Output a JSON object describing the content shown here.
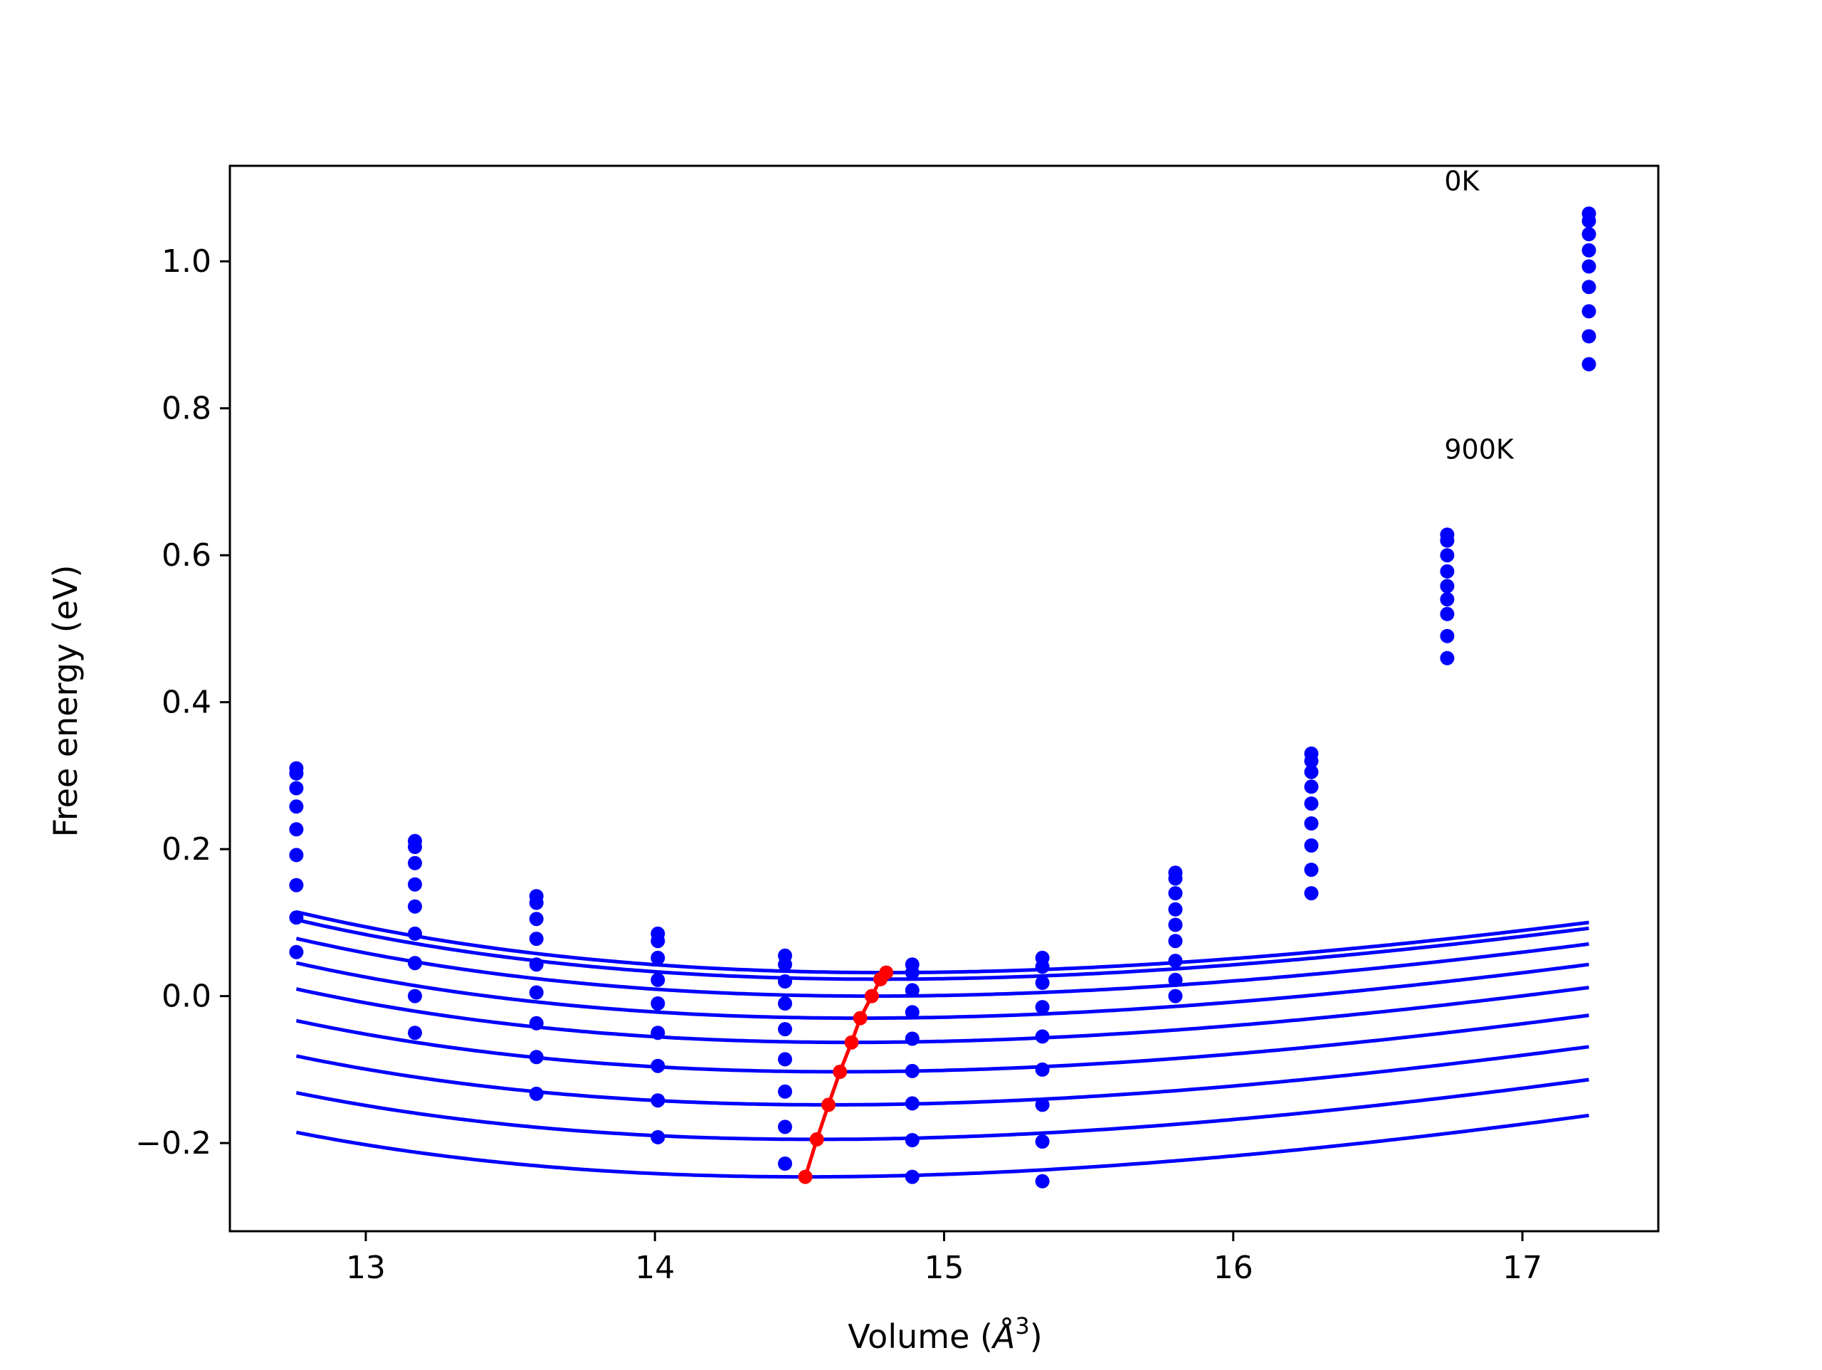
{
  "chart_data": {
    "type": "scatter",
    "title": "",
    "xlabel": "Volume ($\\AA^3$)",
    "xlabel_main": "Volume (",
    "xlabel_unit": "Å",
    "xlabel_exp": "3",
    "xlabel_close": ")",
    "ylabel": "Free energy (eV)",
    "xlim": [
      12.53,
      17.47
    ],
    "ylim": [
      -0.32,
      1.13
    ],
    "xticks": [
      13,
      14,
      15,
      16,
      17
    ],
    "xtick_labels": [
      "13",
      "14",
      "15",
      "16",
      "17"
    ],
    "yticks": [
      -0.2,
      0.0,
      0.2,
      0.4,
      0.6,
      0.8,
      1.0
    ],
    "ytick_labels": [
      "−0.2",
      "0.0",
      "0.2",
      "0.4",
      "0.6",
      "0.8",
      "1.0"
    ],
    "grid": false,
    "annotations": [
      {
        "text": "0K",
        "x": 16.73,
        "y": 1.11
      },
      {
        "text": "900K",
        "x": 16.73,
        "y": 0.745
      }
    ],
    "x": [
      12.76,
      13.17,
      13.59,
      14.01,
      14.45,
      14.89,
      15.34,
      15.8,
      16.27,
      16.74,
      17.23
    ],
    "fit_color": "#0000ff",
    "point_color": "#0000ff",
    "min_color": "#ff0000",
    "series": [
      {
        "a": 0.032,
        "v0": 14.8,
        "B": 0.45,
        "Bp": 4.4,
        "values": [
          0.31,
          0.211,
          0.136,
          0.085,
          0.055,
          0.043,
          0.052,
          0.168,
          0.33,
          0.628,
          1.065
        ]
      },
      {
        "a": 0.023,
        "v0": 14.78,
        "B": 0.45,
        "Bp": 4.4,
        "values": [
          0.303,
          0.203,
          0.127,
          0.075,
          0.043,
          0.032,
          0.04,
          0.16,
          0.32,
          0.62,
          1.055
        ]
      },
      {
        "a": 0.0,
        "v0": 14.75,
        "B": 0.45,
        "Bp": 4.4,
        "values": [
          0.283,
          0.181,
          0.105,
          0.052,
          0.02,
          0.008,
          0.018,
          0.14,
          0.305,
          0.6,
          1.037
        ]
      },
      {
        "a": -0.03,
        "v0": 14.71,
        "B": 0.45,
        "Bp": 4.4,
        "values": [
          0.258,
          0.152,
          0.078,
          0.022,
          -0.01,
          -0.022,
          -0.015,
          0.118,
          0.285,
          0.578,
          1.015
        ]
      },
      {
        "a": -0.063,
        "v0": 14.68,
        "B": 0.45,
        "Bp": 4.4,
        "values": [
          0.227,
          0.122,
          0.043,
          -0.01,
          -0.045,
          -0.058,
          -0.055,
          0.097,
          0.262,
          0.558,
          0.993
        ]
      },
      {
        "a": -0.103,
        "v0": 14.64,
        "B": 0.45,
        "Bp": 4.4,
        "values": [
          0.192,
          0.085,
          0.005,
          -0.05,
          -0.086,
          -0.102,
          -0.1,
          0.075,
          0.235,
          0.54,
          0.965
        ]
      },
      {
        "a": -0.148,
        "v0": 14.6,
        "B": 0.45,
        "Bp": 4.4,
        "values": [
          0.151,
          0.045,
          -0.037,
          -0.095,
          -0.13,
          -0.146,
          -0.148,
          0.048,
          0.205,
          0.52,
          0.932
        ]
      },
      {
        "a": -0.195,
        "v0": 14.56,
        "B": 0.45,
        "Bp": 4.4,
        "values": [
          0.107,
          0.0,
          -0.083,
          -0.142,
          -0.178,
          -0.196,
          -0.198,
          0.022,
          0.172,
          0.49,
          0.898
        ]
      },
      {
        "a": -0.246,
        "v0": 14.52,
        "B": 0.45,
        "Bp": 4.4,
        "values": [
          0.06,
          -0.05,
          -0.133,
          -0.192,
          -0.228,
          -0.246,
          -0.252,
          0.0,
          0.14,
          0.46,
          0.86
        ]
      }
    ],
    "minima": {
      "x": [
        14.8,
        14.78,
        14.75,
        14.71,
        14.68,
        14.64,
        14.6,
        14.56,
        14.52
      ],
      "y": [
        0.032,
        0.023,
        0.0,
        -0.03,
        -0.063,
        -0.103,
        -0.148,
        -0.195,
        -0.246
      ]
    }
  }
}
